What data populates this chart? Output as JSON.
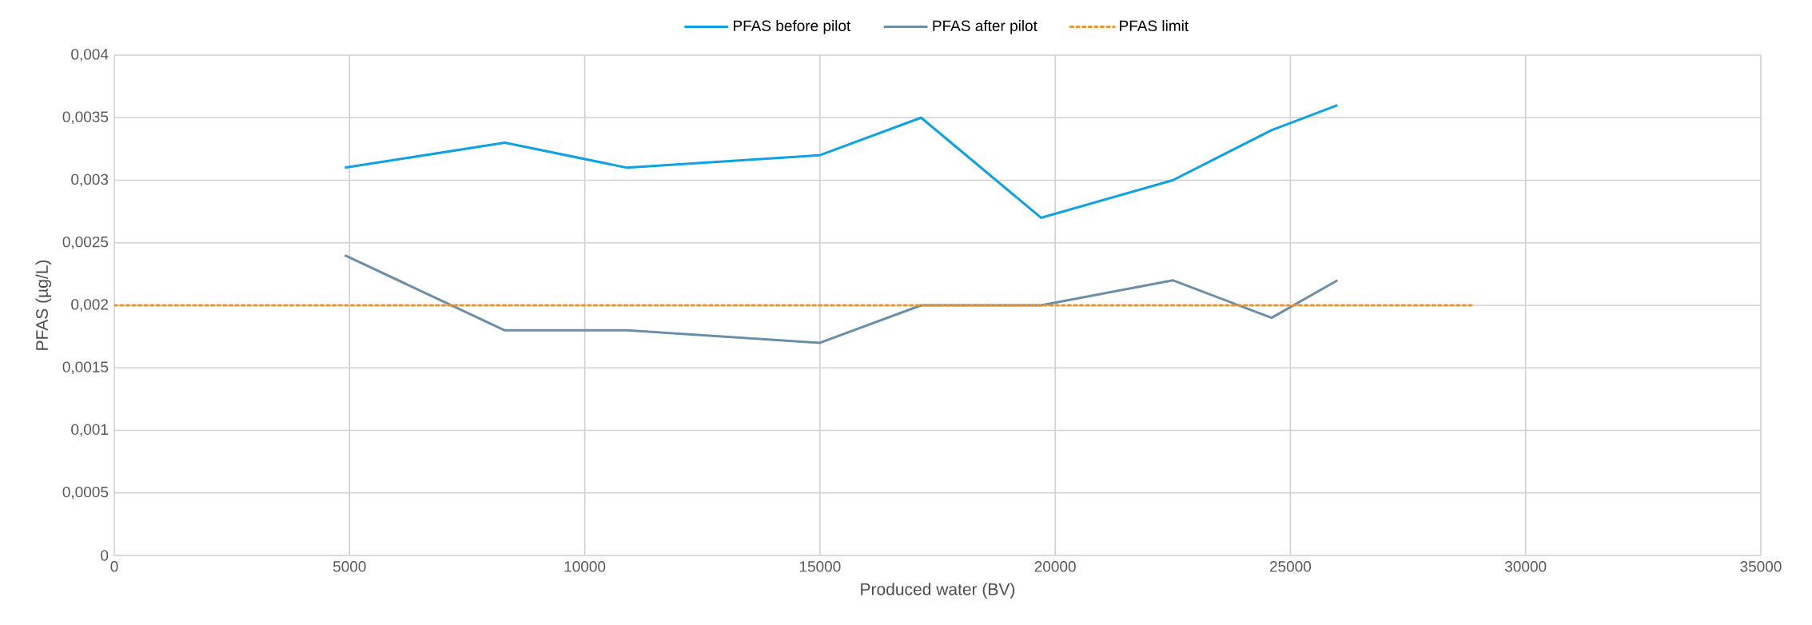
{
  "chart_data": {
    "type": "line",
    "xlabel": "Produced water (BV)",
    "ylabel": "PFAS (µg/L)",
    "xlim": [
      0,
      35000
    ],
    "xticks": [
      0,
      5000,
      10000,
      15000,
      20000,
      25000,
      30000,
      35000
    ],
    "ylim": [
      0,
      0.004
    ],
    "yticks": [
      {
        "value": 0,
        "label": "0"
      },
      {
        "value": 0.0005,
        "label": "0,0005"
      },
      {
        "value": 0.001,
        "label": "0,001"
      },
      {
        "value": 0.0015,
        "label": "0,0015"
      },
      {
        "value": 0.002,
        "label": "0,002"
      },
      {
        "value": 0.0025,
        "label": "0,0025"
      },
      {
        "value": 0.003,
        "label": "0,003"
      },
      {
        "value": 0.0035,
        "label": "0,0035"
      },
      {
        "value": 0.004,
        "label": "0,004"
      }
    ],
    "grid": true,
    "legend": "top",
    "marker": "none",
    "series": [
      {
        "name": "PFAS before pilot",
        "color": "#0ea2e2",
        "line_style": "solid",
        "x": [
          4900,
          8300,
          10900,
          15000,
          17150,
          19700,
          22500,
          24600,
          26000
        ],
        "values": [
          0.0031,
          0.0033,
          0.0031,
          0.0032,
          0.0035,
          0.0027,
          0.003,
          0.0034,
          0.0036
        ]
      },
      {
        "name": "PFAS after pilot",
        "color": "#6b8fa8",
        "line_style": "solid",
        "x": [
          4900,
          8300,
          10900,
          15000,
          17150,
          19700,
          22500,
          24600,
          26000
        ],
        "values": [
          0.0024,
          0.0018,
          0.0018,
          0.0017,
          0.002,
          0.002,
          0.0022,
          0.0019,
          0.0022
        ]
      },
      {
        "name": "PFAS limit",
        "color": "#f39325",
        "line_style": "dotted",
        "x": [
          0,
          28900
        ],
        "values": [
          0.002,
          0.002
        ]
      }
    ]
  }
}
